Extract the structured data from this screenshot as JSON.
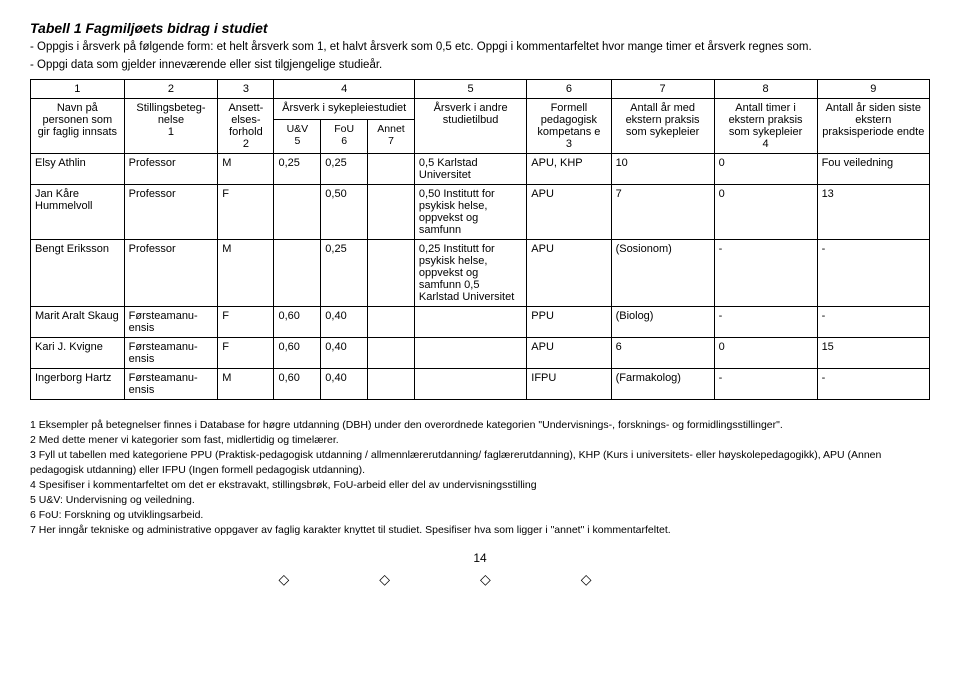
{
  "header": {
    "title": "Tabell 1  Fagmiljøets bidrag i studiet",
    "note1": "- Oppgis i årsverk på følgende form: et helt årsverk som 1, et halvt årsverk som 0,5 etc. Oppgi i kommentarfeltet hvor mange timer et årsverk regnes som.",
    "note2": "- Oppgi data som gjelder inneværende eller sist tilgjengelige studieår."
  },
  "colnums": [
    "1",
    "2",
    "3",
    "4",
    "5",
    "6",
    "7",
    "8",
    "9"
  ],
  "headers": {
    "c1": "Navn på personen som gir faglig innsats",
    "c2": "Stillingsbeteg-nelse",
    "c2_fn": "1",
    "c3": "Ansett-elses-forhold",
    "c3_fn": "2",
    "c4": "Årsverk i sykepleiestudiet",
    "c4a": "U&V",
    "c4a_fn": "5",
    "c4b": "FoU",
    "c4b_fn": "6",
    "c4c": "Annet",
    "c4c_fn": "7",
    "c5": "Årsverk i andre studietilbud",
    "c6": "Formell pedagogisk kompetans e",
    "c6_fn": "3",
    "c7": "Antall år med ekstern praksis som sykepleier",
    "c8": "Antall timer i ekstern praksis som sykepleier",
    "c8_fn": "4",
    "c9": "Antall år siden siste ekstern praksisperiode endte"
  },
  "rows": [
    {
      "navn": "Elsy Athlin",
      "stilling": "Professor",
      "forhold": "M",
      "uv": "0,25",
      "fou": "0,25",
      "annet": "",
      "andre": "0,5 Karlstad Universitet",
      "formell": "APU, KHP",
      "aar_med": "10",
      "timer": "0",
      "aar_siden": "Fou veiledning"
    },
    {
      "navn": "Jan Kåre Hummelvoll",
      "stilling": "Professor",
      "forhold": "F",
      "uv": "",
      "fou": "0,50",
      "annet": "",
      "andre": "0,50 Institutt for psykisk helse, oppvekst og samfunn",
      "formell": "APU",
      "aar_med": "7",
      "timer": "0",
      "aar_siden": "13"
    },
    {
      "navn": "Bengt Eriksson",
      "stilling": "Professor",
      "forhold": "M",
      "uv": "",
      "fou": "0,25",
      "annet": "",
      "andre": "0,25 Institutt for psykisk helse, oppvekst og samfunn 0,5 Karlstad Universitet",
      "formell": "APU",
      "aar_med": "(Sosionom)",
      "timer": "-",
      "aar_siden": "-"
    },
    {
      "navn": "Marit Aralt Skaug",
      "stilling": "Førsteamanu-ensis",
      "forhold": "F",
      "uv": "0,60",
      "fou": "0,40",
      "annet": "",
      "andre": "",
      "formell": "PPU",
      "aar_med": "(Biolog)",
      "timer": "-",
      "aar_siden": "-"
    },
    {
      "navn": "Kari J. Kvigne",
      "stilling": "Førsteamanu-ensis",
      "forhold": "F",
      "uv": "0,60",
      "fou": "0,40",
      "annet": "",
      "andre": "",
      "formell": "APU",
      "aar_med": "6",
      "timer": "0",
      "aar_siden": "15"
    },
    {
      "navn": "Ingerborg Hartz",
      "stilling": "Førsteamanu-ensis",
      "forhold": "M",
      "uv": "0,60",
      "fou": "0,40",
      "annet": "",
      "andre": "",
      "formell": "IFPU",
      "aar_med": "(Farmakolog)",
      "timer": "-",
      "aar_siden": "-"
    }
  ],
  "footnotes": {
    "f1": "1 Eksempler på betegnelser finnes i Database for høgre utdanning (DBH) under den overordnede kategorien \"Undervisnings-, forsknings- og formidlingsstillinger\".",
    "f2": "2 Med dette mener vi kategorier som fast, midlertidig og timelærer.",
    "f3": "3 Fyll ut tabellen med kategoriene PPU (Praktisk-pedagogisk utdanning / allmennlærerutdanning/ faglærerutdanning), KHP (Kurs i universitets- eller høyskolepedagogikk), APU (Annen pedagogisk utdanning) eller IFPU (Ingen formell pedagogisk utdanning).",
    "f4": "4 Spesifiser i kommentarfeltet om det er ekstravakt, stillingsbrøk, FoU-arbeid eller del av undervisningsstilling",
    "f5": "5 U&V: Undervisning og veiledning.",
    "f6": "6 FoU: Forskning og utviklingsarbeid.",
    "f7": "7 Her inngår tekniske og administrative oppgaver av faglig karakter knyttet til studiet. Spesifiser hva som ligger i \"annet\" i kommentarfeltet."
  },
  "pagenum": "14"
}
